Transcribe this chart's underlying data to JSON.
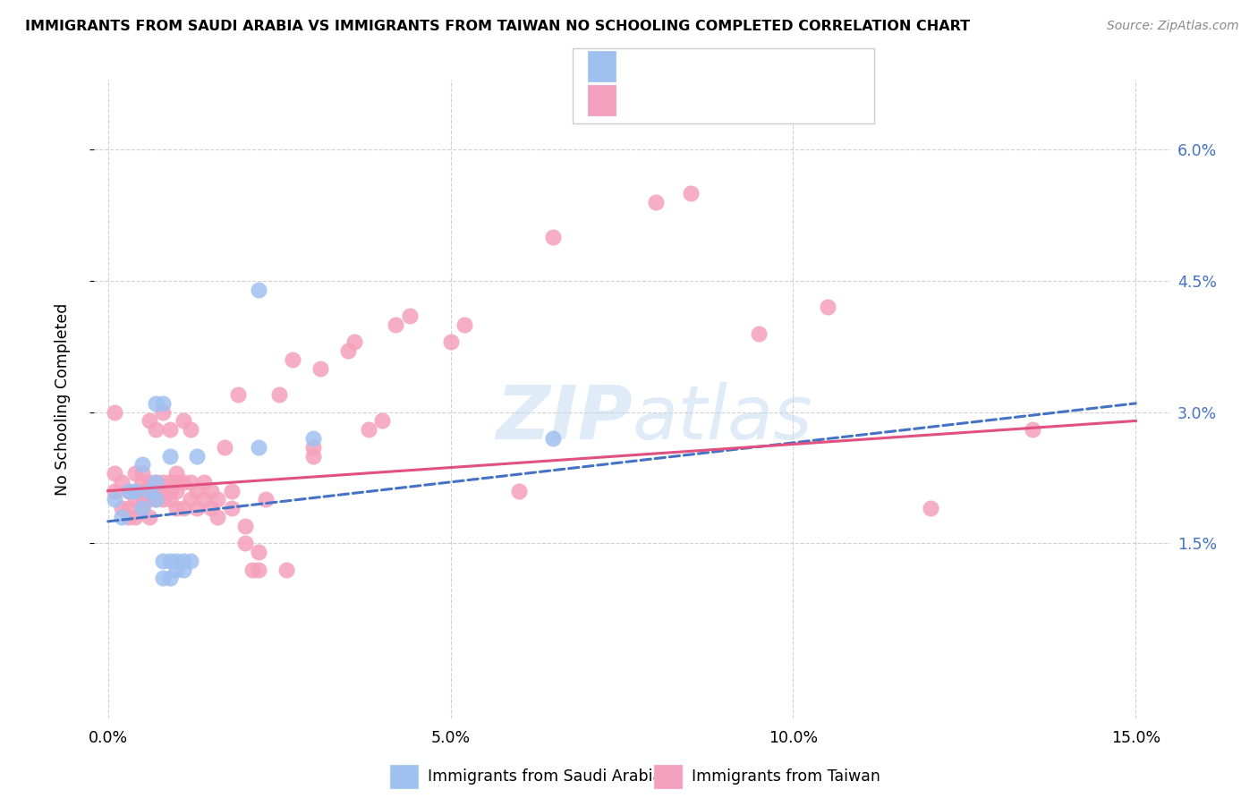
{
  "title": "IMMIGRANTS FROM SAUDI ARABIA VS IMMIGRANTS FROM TAIWAN NO SCHOOLING COMPLETED CORRELATION CHART",
  "source": "Source: ZipAtlas.com",
  "ylabel": "No Schooling Completed",
  "ytick_labels": [
    "1.5%",
    "3.0%",
    "4.5%",
    "6.0%"
  ],
  "ytick_vals": [
    0.015,
    0.03,
    0.045,
    0.06
  ],
  "xtick_vals": [
    0.0,
    0.05,
    0.1,
    0.15
  ],
  "xlim": [
    -0.002,
    0.155
  ],
  "ylim": [
    -0.005,
    0.068
  ],
  "color_saudi": "#a0c0f0",
  "color_taiwan": "#f5a0bc",
  "color_line_saudi": "#4472c4",
  "color_line_taiwan": "#e05080",
  "watermark": "ZIPatlas",
  "saudi_x": [
    0.001,
    0.002,
    0.003,
    0.004,
    0.005,
    0.005,
    0.006,
    0.007,
    0.007,
    0.007,
    0.008,
    0.008,
    0.008,
    0.009,
    0.009,
    0.009,
    0.01,
    0.01,
    0.011,
    0.011,
    0.012,
    0.013,
    0.022,
    0.022,
    0.03,
    0.065
  ],
  "saudi_y": [
    0.02,
    0.018,
    0.021,
    0.021,
    0.019,
    0.024,
    0.021,
    0.02,
    0.022,
    0.031,
    0.011,
    0.013,
    0.031,
    0.011,
    0.013,
    0.025,
    0.012,
    0.013,
    0.012,
    0.013,
    0.013,
    0.025,
    0.026,
    0.044,
    0.027,
    0.027
  ],
  "taiwan_x": [
    0.001,
    0.001,
    0.001,
    0.002,
    0.002,
    0.003,
    0.003,
    0.003,
    0.004,
    0.004,
    0.004,
    0.004,
    0.005,
    0.005,
    0.005,
    0.005,
    0.005,
    0.006,
    0.006,
    0.006,
    0.006,
    0.006,
    0.007,
    0.007,
    0.007,
    0.007,
    0.008,
    0.008,
    0.008,
    0.008,
    0.009,
    0.009,
    0.009,
    0.009,
    0.01,
    0.01,
    0.01,
    0.01,
    0.011,
    0.011,
    0.011,
    0.012,
    0.012,
    0.012,
    0.013,
    0.013,
    0.014,
    0.014,
    0.015,
    0.015,
    0.016,
    0.016,
    0.017,
    0.018,
    0.018,
    0.019,
    0.02,
    0.02,
    0.021,
    0.022,
    0.022,
    0.023,
    0.025,
    0.026,
    0.027,
    0.03,
    0.03,
    0.031,
    0.035,
    0.036,
    0.038,
    0.04,
    0.042,
    0.044,
    0.05,
    0.052,
    0.06,
    0.065,
    0.08,
    0.085,
    0.095,
    0.105,
    0.12,
    0.135
  ],
  "taiwan_y": [
    0.021,
    0.023,
    0.03,
    0.019,
    0.022,
    0.018,
    0.019,
    0.021,
    0.018,
    0.02,
    0.021,
    0.023,
    0.019,
    0.02,
    0.021,
    0.022,
    0.023,
    0.018,
    0.02,
    0.021,
    0.022,
    0.029,
    0.02,
    0.021,
    0.022,
    0.028,
    0.02,
    0.021,
    0.022,
    0.03,
    0.02,
    0.021,
    0.022,
    0.028,
    0.019,
    0.021,
    0.022,
    0.023,
    0.019,
    0.022,
    0.029,
    0.02,
    0.022,
    0.028,
    0.019,
    0.021,
    0.02,
    0.022,
    0.019,
    0.021,
    0.018,
    0.02,
    0.026,
    0.019,
    0.021,
    0.032,
    0.015,
    0.017,
    0.012,
    0.012,
    0.014,
    0.02,
    0.032,
    0.012,
    0.036,
    0.025,
    0.026,
    0.035,
    0.037,
    0.038,
    0.028,
    0.029,
    0.04,
    0.041,
    0.038,
    0.04,
    0.021,
    0.05,
    0.054,
    0.055,
    0.039,
    0.042,
    0.019,
    0.028
  ],
  "line_sa_x0": 0.0,
  "line_sa_y0": 0.0175,
  "line_sa_x1": 0.15,
  "line_sa_y1": 0.031,
  "line_tw_x0": 0.0,
  "line_tw_y0": 0.021,
  "line_tw_x1": 0.15,
  "line_tw_y1": 0.029
}
